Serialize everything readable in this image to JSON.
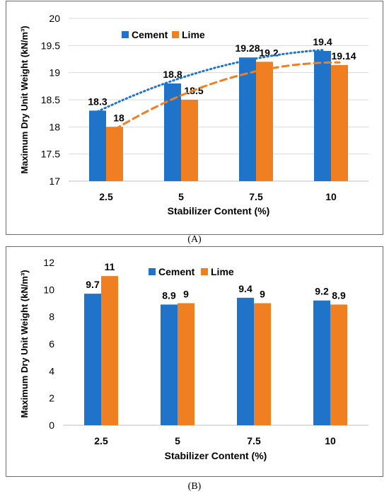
{
  "colors": {
    "cement": "#1f74c9",
    "lime": "#f07f22",
    "grid": "#d9d9d9",
    "axis": "#bfbfbf"
  },
  "chart_data": [
    {
      "type": "bar",
      "categories": [
        "2.5",
        "5",
        "7.5",
        "10"
      ],
      "series": [
        {
          "name": "Cement",
          "values": [
            18.3,
            18.8,
            19.28,
            19.4
          ],
          "labels": [
            "18.3",
            "18.8",
            "19.28",
            "19.4"
          ],
          "trendline": "dotted"
        },
        {
          "name": "Lime",
          "values": [
            18,
            18.5,
            19.2,
            19.14
          ],
          "labels": [
            "18",
            "18.5",
            "19.2",
            "19.14"
          ],
          "trendline": "dashed"
        }
      ],
      "xlabel": "Stabilizer Content (%)",
      "ylabel": "Maximum Dry Unit Weight (kN/m³)",
      "ylim": [
        17,
        20
      ],
      "yticks": [
        "17",
        "17.5",
        "18",
        "18.5",
        "19",
        "19.5",
        "20"
      ],
      "grid": true,
      "legend": "top-left"
    },
    {
      "type": "bar",
      "categories": [
        "2.5",
        "5",
        "7.5",
        "10"
      ],
      "series": [
        {
          "name": "Cement",
          "values": [
            9.7,
            8.9,
            9.4,
            9.2
          ],
          "labels": [
            "9.7",
            "8.9",
            "9.4",
            "9.2"
          ]
        },
        {
          "name": "Lime",
          "values": [
            11,
            9,
            9,
            8.9
          ],
          "labels": [
            "11",
            "9",
            "9",
            "8.9"
          ]
        }
      ],
      "xlabel": "Stabilizer Content (%)",
      "ylabel": "Maximum Dry Unit Weight (kN/m³)",
      "ylim": [
        0,
        12
      ],
      "yticks": [
        "0",
        "2",
        "4",
        "6",
        "8",
        "10",
        "12"
      ],
      "grid": false,
      "legend": "top-right"
    }
  ],
  "captions": {
    "a": "(A)",
    "b": "(B)"
  }
}
